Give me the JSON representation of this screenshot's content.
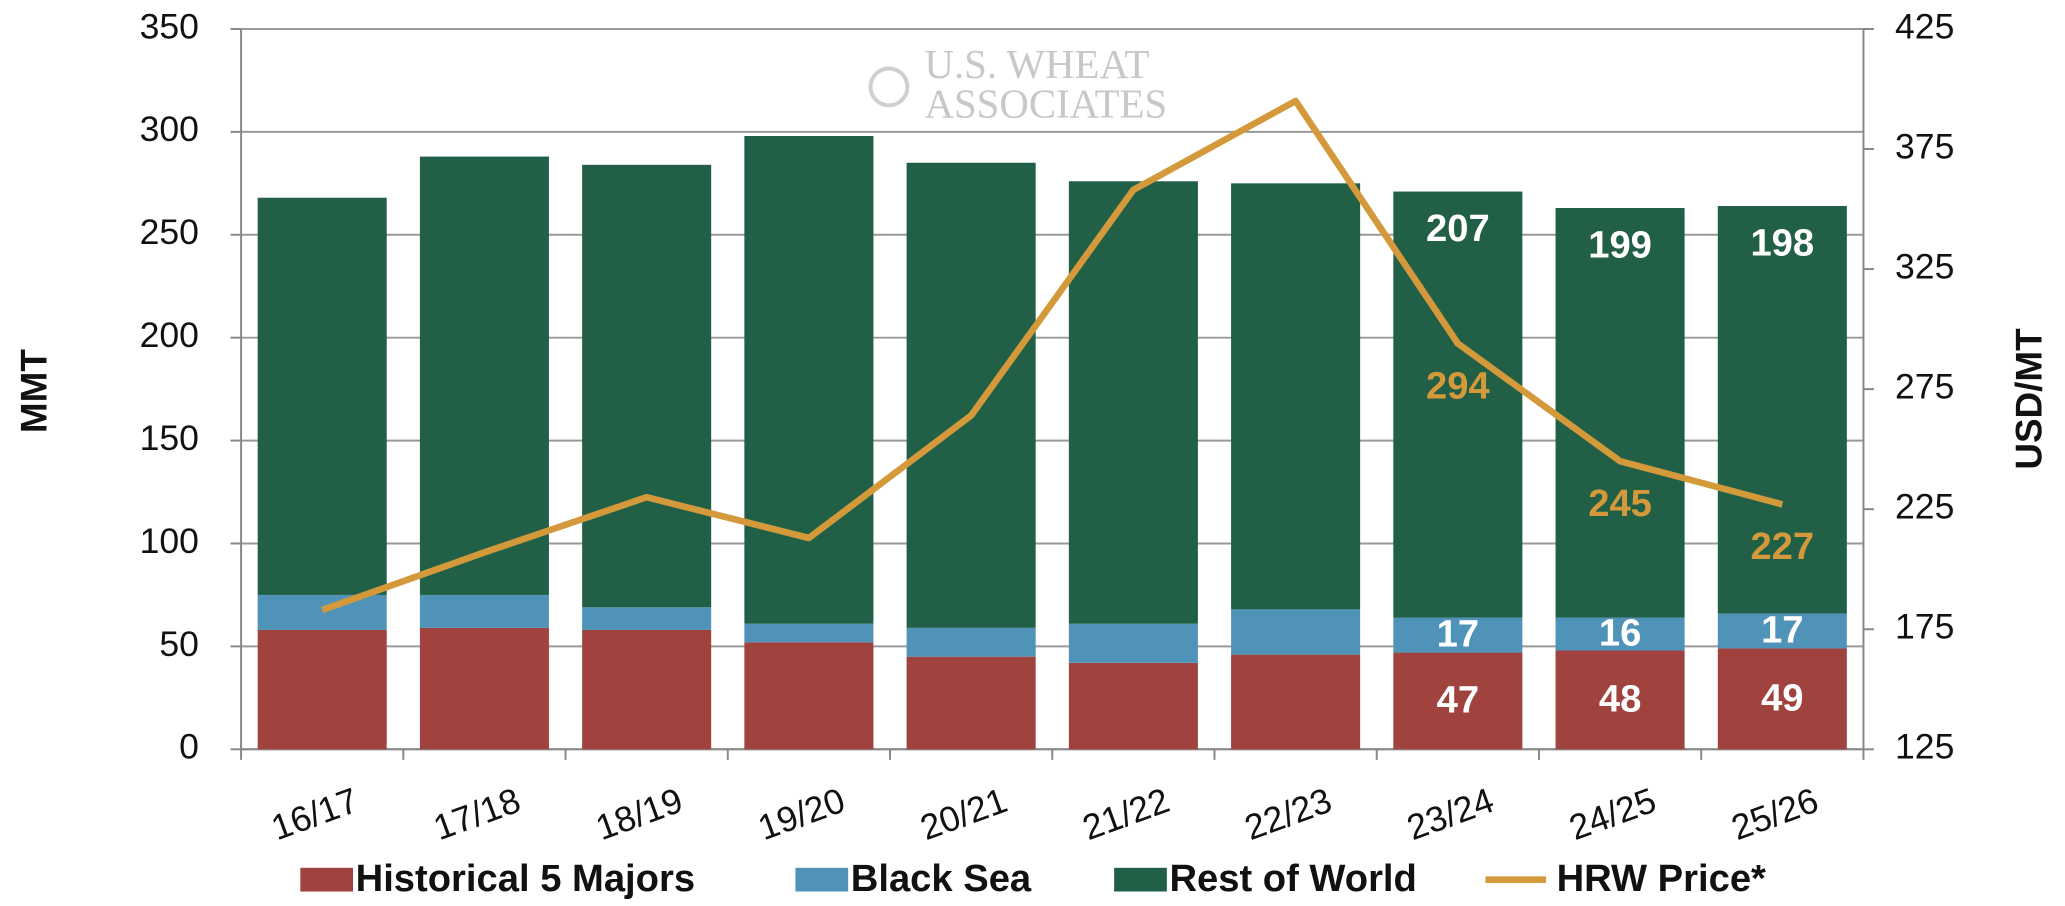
{
  "chart_data": {
    "type": "bar",
    "watermark": [
      "U.S. WHEAT",
      "ASSOCIATES"
    ],
    "ylabel": "MMT",
    "y2label": "USD/MT",
    "categories": [
      "16/17",
      "17/18",
      "18/19",
      "19/20",
      "20/21",
      "21/22",
      "22/23",
      "23/24",
      "24/25",
      "25/26"
    ],
    "stacked": true,
    "series": [
      {
        "name": "Historical 5 Majors",
        "color": "#a0433f",
        "values": [
          58,
          59,
          58,
          52,
          45,
          42,
          46,
          47,
          48,
          49
        ],
        "label_indices": [
          7,
          8,
          9
        ]
      },
      {
        "name": "Black Sea",
        "color": "#4f93b8",
        "values": [
          17,
          16,
          11,
          9,
          14,
          19,
          22,
          17,
          16,
          17
        ],
        "label_indices": [
          7,
          8,
          9
        ]
      },
      {
        "name": "Rest of World",
        "color": "#216046",
        "values": [
          193,
          213,
          215,
          237,
          226,
          215,
          207,
          207,
          199,
          198
        ],
        "label_indices": [
          7,
          8,
          9
        ]
      },
      {
        "name": "HRW Price*",
        "type": "line",
        "axis": "y2",
        "color": "#d4993a",
        "values": [
          183,
          207,
          230,
          213,
          264,
          358,
          395,
          294,
          245,
          227
        ],
        "label_indices": [
          7,
          8,
          9
        ]
      }
    ],
    "ylim": [
      0,
      350
    ],
    "yticks": [
      0,
      50,
      100,
      150,
      200,
      250,
      300,
      350
    ],
    "y2lim": [
      125,
      425
    ],
    "y2ticks": [
      125,
      175,
      225,
      275,
      325,
      375,
      425
    ],
    "grid": true,
    "legend": "bottom"
  }
}
